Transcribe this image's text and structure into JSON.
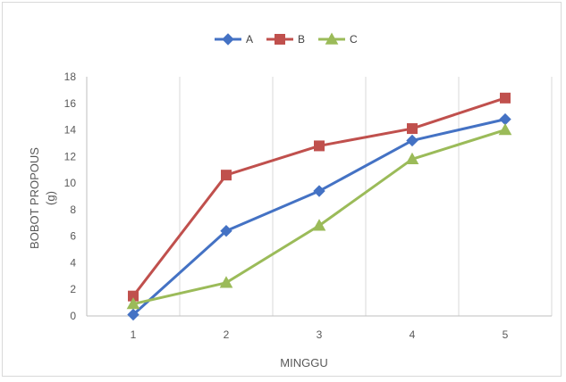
{
  "chart_data": {
    "type": "line",
    "title": "",
    "xlabel": "MINGGU",
    "ylabel_line1": "BOBOT PROPOUS",
    "ylabel_line2": "(g)",
    "categories": [
      "1",
      "2",
      "3",
      "4",
      "5"
    ],
    "ylim": [
      0,
      18
    ],
    "yticks": [
      0,
      2,
      4,
      6,
      8,
      10,
      12,
      14,
      16,
      18
    ],
    "grid": "vertical",
    "legend_position": "top-center",
    "series": [
      {
        "name": "A",
        "color": "#4472C4",
        "marker": "diamond",
        "values": [
          0.1,
          6.4,
          9.4,
          13.2,
          14.8
        ]
      },
      {
        "name": "B",
        "color": "#C0504D",
        "marker": "square",
        "values": [
          1.5,
          10.6,
          12.8,
          14.1,
          16.4
        ]
      },
      {
        "name": "C",
        "color": "#9BBB59",
        "marker": "triangle",
        "values": [
          0.9,
          2.5,
          6.8,
          11.8,
          14.0
        ]
      }
    ]
  }
}
